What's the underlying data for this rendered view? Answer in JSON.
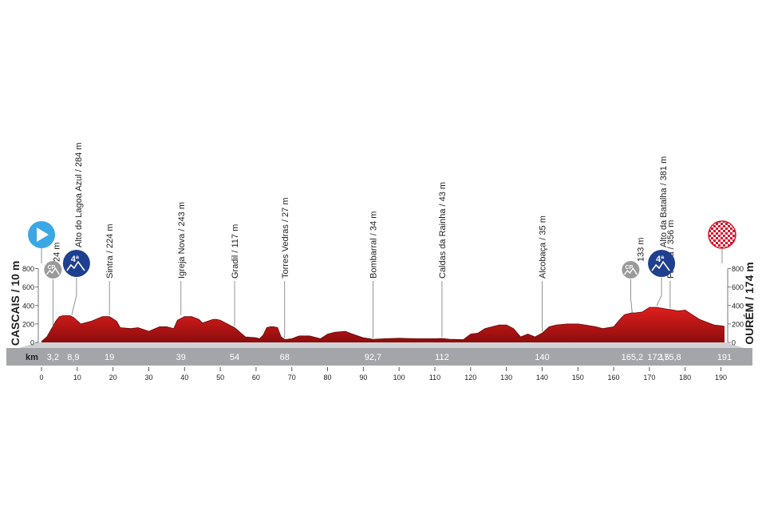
{
  "chart_data": {
    "type": "area",
    "start_label": "CASCAIS / 10 m",
    "finish_label": "OURÉM / 174 m",
    "x_unit": "km",
    "xlim": [
      0,
      191
    ],
    "ylim": [
      0,
      1000
    ],
    "x_ticks": [
      0,
      10,
      20,
      30,
      40,
      50,
      60,
      70,
      80,
      90,
      100,
      110,
      120,
      130,
      140,
      150,
      160,
      170,
      180,
      190
    ],
    "y_ticks": [
      0,
      200,
      400,
      600,
      800
    ],
    "profile": {
      "x": [
        0,
        1.5,
        3,
        4,
        5,
        6,
        8,
        9,
        11,
        14,
        17,
        19,
        21,
        22,
        25,
        27,
        30,
        33,
        35,
        37,
        38,
        40,
        42,
        44,
        45,
        48,
        49,
        50,
        53,
        54,
        57,
        60,
        61,
        62,
        63,
        64,
        65,
        66,
        67,
        68,
        70,
        72,
        75,
        78,
        80,
        82,
        85,
        87,
        90,
        92.7,
        96,
        100,
        105,
        110,
        112,
        114,
        118,
        120,
        122,
        124,
        126,
        128,
        130,
        132,
        134,
        136,
        138,
        140,
        142,
        144,
        147,
        150,
        152,
        155,
        157,
        160,
        162,
        163,
        165,
        166,
        168,
        170,
        172,
        175,
        176,
        178,
        180,
        182,
        184,
        186,
        188,
        190,
        191
      ],
      "y": [
        10,
        60,
        160,
        230,
        280,
        290,
        290,
        270,
        200,
        230,
        280,
        280,
        230,
        160,
        150,
        160,
        120,
        170,
        170,
        150,
        240,
        280,
        280,
        250,
        210,
        250,
        250,
        240,
        180,
        160,
        60,
        50,
        40,
        80,
        160,
        170,
        170,
        160,
        60,
        30,
        40,
        70,
        70,
        40,
        90,
        110,
        120,
        90,
        50,
        34,
        40,
        45,
        40,
        40,
        43,
        35,
        30,
        90,
        100,
        150,
        170,
        190,
        190,
        150,
        60,
        90,
        60,
        100,
        170,
        190,
        200,
        200,
        190,
        170,
        150,
        170,
        260,
        300,
        320,
        320,
        330,
        380,
        381,
        360,
        356,
        340,
        350,
        300,
        250,
        220,
        190,
        180,
        174
      ]
    },
    "km_markers": [
      {
        "x": 3.2,
        "label": "3,2"
      },
      {
        "x": 8.9,
        "label": "8,9"
      },
      {
        "x": 19,
        "label": "19"
      },
      {
        "x": 39,
        "label": "39"
      },
      {
        "x": 54,
        "label": "54"
      },
      {
        "x": 68,
        "label": "68"
      },
      {
        "x": 92.7,
        "label": "92,7"
      },
      {
        "x": 112,
        "label": "112"
      },
      {
        "x": 140,
        "label": "140"
      },
      {
        "x": 165.2,
        "label": "165,2"
      },
      {
        "x": 172.5,
        "label": "172,5"
      },
      {
        "x": 175.8,
        "label": "175,8"
      },
      {
        "x": 191,
        "label": "191"
      }
    ],
    "annotations": [
      {
        "x": 3.2,
        "elev": 150,
        "text": "24 m",
        "icon": "cp"
      },
      {
        "x": 8.9,
        "elev": 280,
        "text": "Alto do Lagoa Azul / 284 m",
        "icon": "cat4",
        "icon_text": "4ª"
      },
      {
        "x": 19,
        "elev": 280,
        "text": "Sintra / 224 m"
      },
      {
        "x": 39,
        "elev": 280,
        "text": "Igreja Nova / 243 m"
      },
      {
        "x": 54,
        "elev": 160,
        "text": "Gradil / 117 m"
      },
      {
        "x": 68,
        "elev": 30,
        "text": "Torres Vedras / 27 m"
      },
      {
        "x": 92.7,
        "elev": 34,
        "text": "Bombarral / 34 m"
      },
      {
        "x": 112,
        "elev": 43,
        "text": "Caldas da Rainha / 43 m"
      },
      {
        "x": 140,
        "elev": 100,
        "text": "Alcobaça / 35 m"
      },
      {
        "x": 165.2,
        "elev": 300,
        "text": "133 m",
        "icon": "cp"
      },
      {
        "x": 172.5,
        "elev": 381,
        "text": "Alto da Batalha / 381 m",
        "icon": "cat4",
        "icon_text": "4ª"
      },
      {
        "x": 175.8,
        "elev": 356,
        "text": "Fatima / 356 m"
      }
    ],
    "colors": {
      "profile_top": "#e01e1e",
      "profile_bottom": "#8c0d0d",
      "km_band": "#a3a5a9",
      "km_band_light": "#cfd1d4",
      "start_icon": "#3aa8e4",
      "cat4_icon": "#1f3f8f",
      "cp_icon": "#9a9a9a",
      "finish_icon": "#d6142b"
    }
  }
}
